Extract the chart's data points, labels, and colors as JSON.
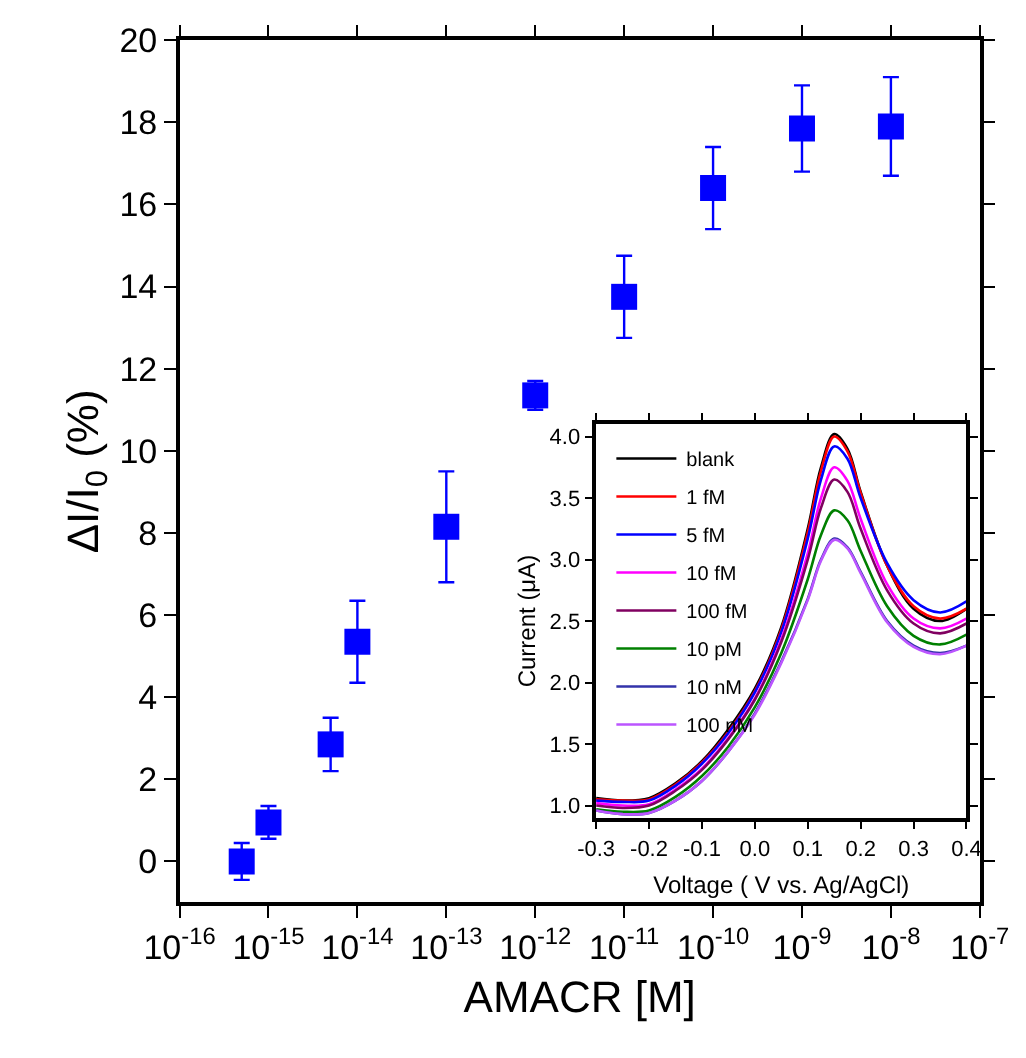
{
  "chart_data": [
    {
      "type": "scatter",
      "xlabel": "AMACR [M]",
      "ylabel": "ΔI/I$_{0}$ (%)",
      "log": "x",
      "marker": "square",
      "color": "#0000ff",
      "x": [
        5e-16,
        1e-15,
        5e-15,
        1e-14,
        1e-13,
        1e-12,
        1e-11,
        1e-10,
        1e-09,
        1e-08
      ],
      "values": [
        0,
        0.95,
        2.85,
        5.35,
        8.15,
        11.35,
        13.75,
        16.4,
        17.85,
        17.9
      ],
      "errors": [
        0.45,
        0.4,
        0.65,
        1.0,
        1.35,
        0.35,
        1.0,
        1.0,
        1.05,
        1.2
      ],
      "xlim": [
        1e-16,
        1e-07
      ],
      "xticks": [
        {
          "value": 1e-16,
          "label": "10$^{-16}$"
        },
        {
          "value": 1e-15,
          "label": "10$^{-15}$"
        },
        {
          "value": 1e-14,
          "label": "10$^{-14}$"
        },
        {
          "value": 1e-13,
          "label": "10$^{-13}$"
        },
        {
          "value": 1e-12,
          "label": "10$^{-12}$"
        },
        {
          "value": 1e-11,
          "label": "10$^{-11}$"
        },
        {
          "value": 1e-10,
          "label": "10$^{-10}$"
        },
        {
          "value": 1e-09,
          "label": "10$^{-9}$"
        },
        {
          "value": 1e-08,
          "label": "10$^{-8}$"
        },
        {
          "value": 1e-07,
          "label": "10$^{-7}$"
        }
      ],
      "ylim": [
        -1,
        20
      ],
      "yticks": [
        0,
        2,
        4,
        6,
        8,
        10,
        12,
        14,
        16,
        18,
        20
      ]
    },
    {
      "type": "line",
      "xlabel": "Voltage ( V vs. Ag/AgCl)",
      "ylabel": "Current (μA)",
      "legend": "top left",
      "x": [
        -0.3,
        -0.25,
        -0.2,
        -0.15,
        -0.1,
        -0.05,
        0,
        0.05,
        0.1,
        0.125,
        0.15,
        0.175,
        0.2,
        0.25,
        0.3,
        0.35,
        0.4
      ],
      "series": [
        {
          "name": "blank",
          "color": "#000000",
          "values": [
            1.06,
            1.04,
            1.06,
            1.18,
            1.36,
            1.62,
            1.95,
            2.45,
            3.25,
            3.75,
            4.02,
            3.9,
            3.55,
            2.95,
            2.6,
            2.5,
            2.6
          ]
        },
        {
          "name": "1 fM",
          "color": "#ff0000",
          "values": [
            1.05,
            1.04,
            1.05,
            1.17,
            1.35,
            1.6,
            1.93,
            2.43,
            3.22,
            3.72,
            4.0,
            3.88,
            3.54,
            2.95,
            2.62,
            2.52,
            2.6
          ]
        },
        {
          "name": "5 fM",
          "color": "#0000ff",
          "values": [
            1.04,
            1.03,
            1.04,
            1.16,
            1.34,
            1.59,
            1.92,
            2.41,
            3.17,
            3.65,
            3.92,
            3.82,
            3.5,
            2.97,
            2.67,
            2.57,
            2.66
          ]
        },
        {
          "name": "10 fM",
          "color": "#ff00ff",
          "values": [
            1.02,
            1.0,
            1.01,
            1.13,
            1.3,
            1.55,
            1.87,
            2.35,
            3.05,
            3.5,
            3.75,
            3.64,
            3.33,
            2.8,
            2.52,
            2.44,
            2.52
          ]
        },
        {
          "name": "100 fM",
          "color": "#800060",
          "values": [
            1.0,
            0.98,
            1.0,
            1.12,
            1.29,
            1.54,
            1.86,
            2.33,
            3.0,
            3.42,
            3.65,
            3.55,
            3.25,
            2.75,
            2.48,
            2.4,
            2.48
          ]
        },
        {
          "name": "10 pM",
          "color": "#008000",
          "values": [
            0.97,
            0.95,
            0.96,
            1.07,
            1.24,
            1.48,
            1.8,
            2.24,
            2.84,
            3.2,
            3.4,
            3.32,
            3.07,
            2.62,
            2.38,
            2.31,
            2.39
          ]
        },
        {
          "name": "10 nM",
          "color": "#3333aa",
          "values": [
            0.96,
            0.93,
            0.94,
            1.04,
            1.2,
            1.44,
            1.75,
            2.17,
            2.68,
            3.0,
            3.17,
            3.1,
            2.9,
            2.5,
            2.3,
            2.24,
            2.3
          ]
        },
        {
          "name": "100 nM",
          "color": "#bb55ff",
          "values": [
            0.96,
            0.93,
            0.94,
            1.04,
            1.2,
            1.44,
            1.74,
            2.16,
            2.67,
            2.99,
            3.16,
            3.09,
            2.89,
            2.49,
            2.29,
            2.23,
            2.3
          ]
        }
      ],
      "xlim": [
        -0.3,
        0.4
      ],
      "xticks": [
        {
          "value": -0.3,
          "label": "-0.3"
        },
        {
          "value": -0.2,
          "label": "-0.2"
        },
        {
          "value": -0.1,
          "label": "-0.1"
        },
        {
          "value": 0,
          "label": "0.0"
        },
        0.1,
        0.2,
        0.3,
        0.4
      ],
      "ylim": [
        0.9,
        4.1
      ],
      "yticks": [
        {
          "value": 1,
          "label": "1.0"
        },
        1.5,
        {
          "value": 2,
          "label": "2.0"
        },
        2.5,
        {
          "value": 3,
          "label": "3.0"
        },
        3.5,
        {
          "value": 4,
          "label": "4.0"
        }
      ]
    }
  ]
}
